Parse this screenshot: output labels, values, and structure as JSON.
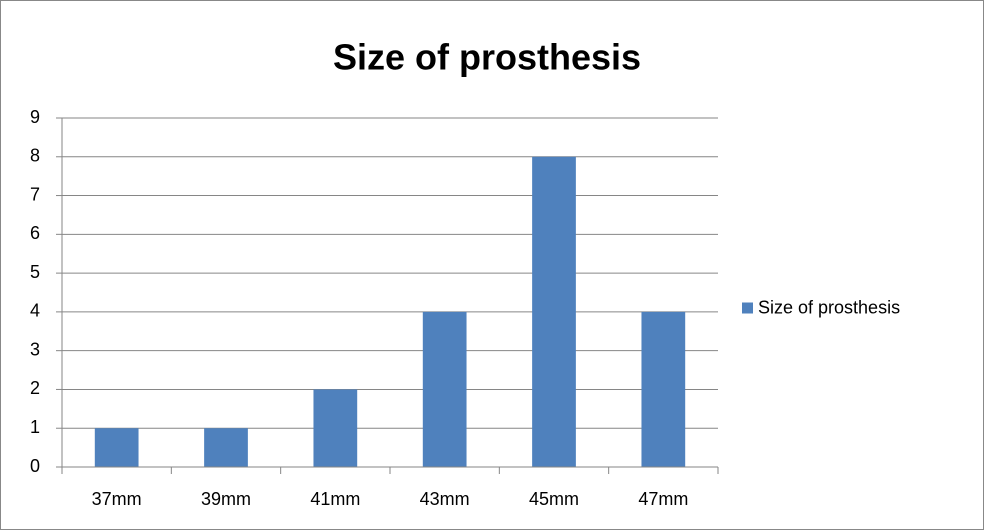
{
  "chart_data": {
    "type": "bar",
    "title": "Size of prosthesis",
    "categories": [
      "37mm",
      "39mm",
      "41mm",
      "43mm",
      "45mm",
      "47mm"
    ],
    "series": [
      {
        "name": "Size of prosthesis",
        "color": "#4f81bd",
        "values": [
          1,
          1,
          2,
          4,
          8,
          4
        ]
      }
    ],
    "ylim": [
      0,
      9
    ],
    "yticks": [
      0,
      1,
      2,
      3,
      4,
      5,
      6,
      7,
      8,
      9
    ],
    "grid": true,
    "legend": "right"
  }
}
